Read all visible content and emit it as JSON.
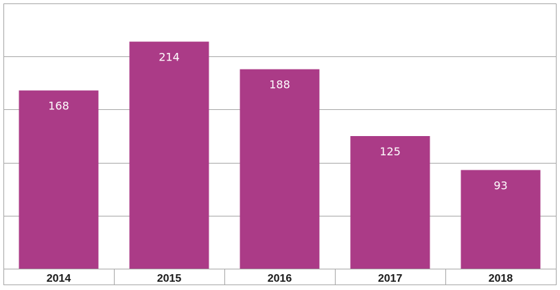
{
  "chart_data": {
    "type": "bar",
    "categories": [
      "2014",
      "2015",
      "2016",
      "2017",
      "2018"
    ],
    "values": [
      168,
      214,
      188,
      125,
      93
    ],
    "data_labels": [
      "168",
      "214",
      "188",
      "125",
      "93"
    ],
    "title": "",
    "xlabel": "",
    "ylabel": "",
    "ylim": [
      0,
      250
    ],
    "y_gridline_step": 50,
    "y_tick_labels_shown": false,
    "grid": true,
    "legend": "none",
    "colors": {
      "bar": "#ab3b87",
      "bar_label": "#ffffff",
      "grid": "#a6a6a6",
      "axis_text": "#1a1a1a"
    }
  }
}
